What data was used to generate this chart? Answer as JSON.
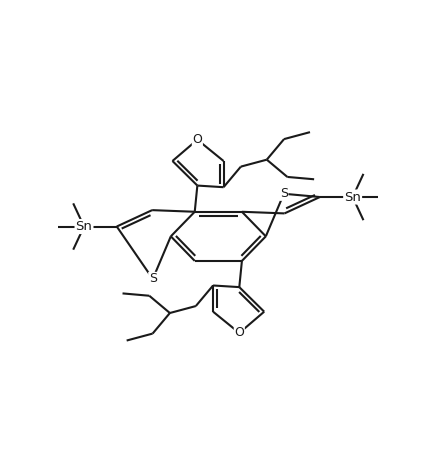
{
  "bg": "#ffffff",
  "lc": "#1a1a1a",
  "lw": 1.5,
  "fig_w": 4.26,
  "fig_h": 4.68,
  "dpi": 100,
  "xlim": [
    0,
    10
  ],
  "ylim": [
    0,
    11
  ]
}
